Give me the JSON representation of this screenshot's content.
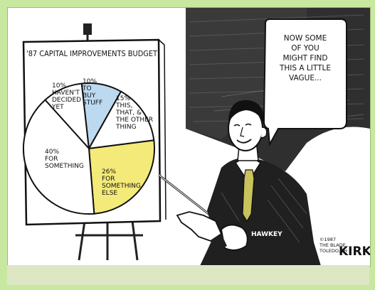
{
  "colors": {
    "frame": "#c8e8a0",
    "sky": "#2b2b2b",
    "highlight_blue": "#bcd9ef",
    "highlight_yellow": "#f4ea79",
    "tie": "#c8c35a",
    "strip": "#dde7c4"
  },
  "chart": {
    "title": "'87 CAPITAL IMPROVEMENTS BUDGET"
  },
  "chart_data": {
    "type": "pie",
    "title": "'87 CAPITAL IMPROVEMENTS BUDGET",
    "categories": [
      "HAVEN'T DECIDED YET",
      "TO BUY STUFF",
      "THIS, THAT, & THE OTHER THING",
      "FOR SOMETHING ELSE",
      "FOR SOMETHING"
    ],
    "values": [
      10,
      10,
      15,
      26,
      40
    ],
    "slices": [
      {
        "label_lines": [
          "10%",
          "HAVEN'T",
          "DECIDED",
          "YET"
        ],
        "value": 10,
        "fill": "#ffffff"
      },
      {
        "label_lines": [
          "10%",
          "TO",
          "BUY",
          "STUFF"
        ],
        "value": 10,
        "fill": "#bcd9ef"
      },
      {
        "label_lines": [
          "15%",
          "THIS,",
          "THAT, &",
          "THE OTHER",
          "THING"
        ],
        "value": 15,
        "fill": "#ffffff"
      },
      {
        "label_lines": [
          "26%",
          "FOR",
          "SOMETHING",
          "ELSE"
        ],
        "value": 26,
        "fill": "#f4ea79"
      },
      {
        "label_lines": [
          "40%",
          "FOR",
          "SOMETHING"
        ],
        "value": 40,
        "fill": "#ffffff"
      }
    ]
  },
  "speech_bubble": {
    "lines": [
      "NOW SOME",
      "OF YOU",
      "MIGHT FIND",
      "THIS A LITTLE",
      "VAGUE..."
    ]
  },
  "nameplate": "HAWKEY",
  "credit": {
    "lines": [
      "©1987",
      "THE BLADE",
      "TOLEDO,OH"
    ],
    "signature": "KIRK"
  }
}
